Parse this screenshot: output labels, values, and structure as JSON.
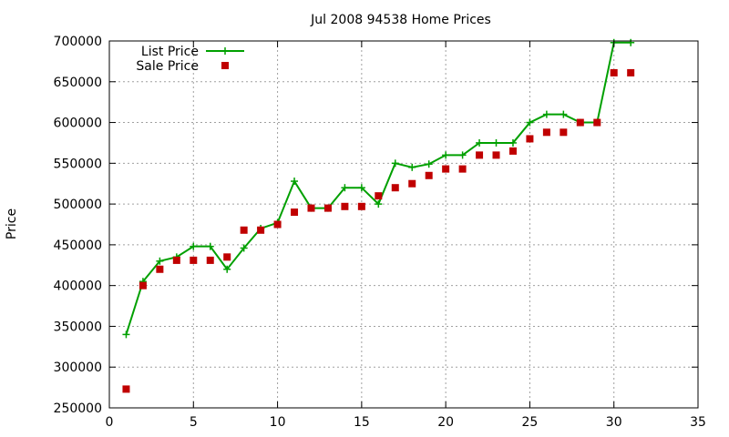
{
  "chart_data": {
    "type": "line",
    "title": "Jul 2008 94538 Home Prices",
    "xlabel": "",
    "ylabel": "Price",
    "xlim": [
      0,
      35
    ],
    "ylim": [
      250000,
      700000
    ],
    "xticks": [
      0,
      5,
      10,
      15,
      20,
      25,
      30,
      35
    ],
    "yticks": [
      250000,
      300000,
      350000,
      400000,
      450000,
      500000,
      550000,
      600000,
      650000,
      700000
    ],
    "grid": true,
    "legend_position": "top-left",
    "series": [
      {
        "name": "List Price",
        "style": "line-with-plus-markers",
        "color": "#00a000",
        "x": [
          1,
          2,
          3,
          4,
          5,
          6,
          7,
          8,
          9,
          10,
          11,
          12,
          13,
          14,
          15,
          16,
          17,
          18,
          19,
          20,
          21,
          22,
          23,
          24,
          25,
          26,
          27,
          28,
          29,
          30,
          31
        ],
        "y": [
          340000,
          405000,
          430000,
          435000,
          448000,
          448000,
          420000,
          446000,
          470000,
          477000,
          528000,
          495000,
          495000,
          520000,
          520000,
          500000,
          550000,
          545000,
          549000,
          560000,
          560000,
          575000,
          575000,
          575000,
          600000,
          610000,
          610000,
          600000,
          600000,
          698000,
          698000
        ]
      },
      {
        "name": "Sale Price",
        "style": "square-markers",
        "color": "#c00000",
        "x": [
          1,
          2,
          3,
          4,
          5,
          6,
          7,
          8,
          9,
          10,
          11,
          12,
          13,
          14,
          15,
          16,
          17,
          18,
          19,
          20,
          21,
          22,
          23,
          24,
          25,
          26,
          27,
          28,
          29,
          30,
          31
        ],
        "y": [
          273000,
          400000,
          420000,
          431000,
          431000,
          431000,
          435000,
          468000,
          468000,
          475000,
          490000,
          495000,
          495000,
          497000,
          497000,
          510000,
          520000,
          525000,
          535000,
          543000,
          543000,
          560000,
          560000,
          565000,
          580000,
          588000,
          588000,
          600000,
          600000,
          661000,
          661000
        ]
      }
    ]
  }
}
